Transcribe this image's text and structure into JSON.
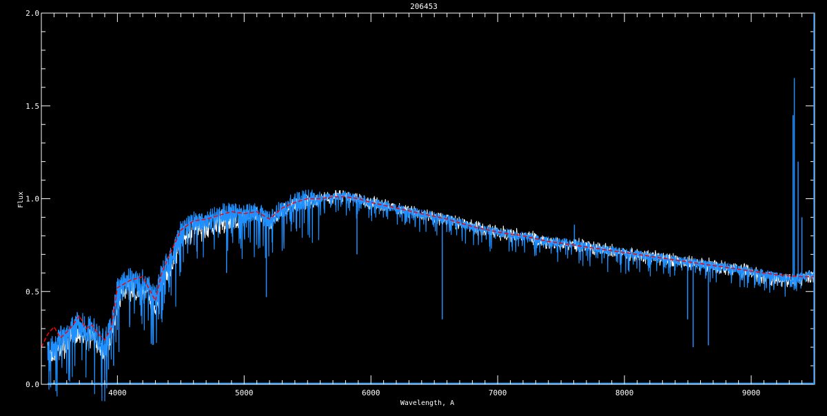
{
  "chart_data": {
    "type": "line",
    "title": "206453",
    "xlabel": "Wavelength, A",
    "ylabel": "Flux",
    "xlim": [
      3400,
      9500
    ],
    "ylim": [
      0.0,
      2.0
    ],
    "x_ticks": [
      4000,
      5000,
      6000,
      7000,
      8000,
      9000
    ],
    "x_tick_labels": [
      "4000",
      "5000",
      "6000",
      "7000",
      "8000",
      "9000"
    ],
    "y_ticks": [
      0.0,
      0.5,
      1.0,
      1.5,
      2.0
    ],
    "y_tick_labels": [
      "0.0",
      "0.5",
      "1.0",
      "1.5",
      "2.0"
    ],
    "grid": false,
    "colors": {
      "observed": "#1e90ff",
      "model": "#ff0000",
      "secondary": "#ffffff",
      "axes": "#ffffff",
      "background": "#000000"
    },
    "series": [
      {
        "id": "observed",
        "x": [
          3450,
          3500,
          3550,
          3600,
          3650,
          3700,
          3750,
          3800,
          3850,
          3900,
          3950,
          4000,
          4050,
          4100,
          4150,
          4200,
          4250,
          4300,
          4350,
          4400,
          4450,
          4500,
          4600,
          4700,
          4800,
          4900,
          5000,
          5100,
          5200,
          5300,
          5400,
          5500,
          5600,
          5700,
          5800,
          5900,
          6000,
          6200,
          6400,
          6600,
          6800,
          7000,
          7200,
          7400,
          7600,
          7800,
          8000,
          8200,
          8400,
          8600,
          8800,
          9000,
          9200,
          9300,
          9400,
          9500
        ],
        "y": [
          0.2,
          0.22,
          0.25,
          0.25,
          0.3,
          0.33,
          0.3,
          0.3,
          0.25,
          0.22,
          0.3,
          0.5,
          0.55,
          0.56,
          0.55,
          0.55,
          0.52,
          0.45,
          0.6,
          0.65,
          0.72,
          0.82,
          0.88,
          0.88,
          0.92,
          0.93,
          0.92,
          0.93,
          0.88,
          0.95,
          0.98,
          1.0,
          1.0,
          1.01,
          1.02,
          1.0,
          0.98,
          0.95,
          0.92,
          0.89,
          0.85,
          0.82,
          0.8,
          0.77,
          0.76,
          0.73,
          0.71,
          0.69,
          0.67,
          0.65,
          0.63,
          0.61,
          0.58,
          0.57,
          0.58,
          0.6
        ]
      },
      {
        "id": "model",
        "x": [
          3400,
          3450,
          3500,
          3550,
          3600,
          3650,
          3700,
          3750,
          3800,
          3850,
          3900,
          3950,
          4000,
          4100,
          4200,
          4300,
          4350,
          4400,
          4500,
          4600,
          4700,
          4800,
          4900,
          5000,
          5100,
          5200,
          5300,
          5400,
          5500,
          5600,
          5700,
          5800,
          5900,
          6000,
          6200,
          6400,
          6600,
          6800,
          7000,
          7200,
          7400,
          7600,
          7800,
          8000,
          8200,
          8400,
          8600,
          8800,
          9000,
          9200,
          9400,
          9500
        ],
        "y": [
          0.2,
          0.27,
          0.31,
          0.25,
          0.28,
          0.32,
          0.37,
          0.3,
          0.32,
          0.27,
          0.24,
          0.3,
          0.52,
          0.56,
          0.58,
          0.45,
          0.6,
          0.68,
          0.83,
          0.88,
          0.89,
          0.91,
          0.93,
          0.92,
          0.93,
          0.89,
          0.95,
          0.98,
          1.0,
          1.0,
          1.01,
          1.01,
          1.0,
          0.98,
          0.95,
          0.92,
          0.89,
          0.85,
          0.82,
          0.8,
          0.77,
          0.75,
          0.73,
          0.71,
          0.69,
          0.67,
          0.65,
          0.63,
          0.61,
          0.59,
          0.58,
          0.58
        ]
      }
    ],
    "lines": [
      {
        "x": 3930,
        "y": 0.08
      },
      {
        "x": 3970,
        "y": 0.1
      },
      {
        "x": 4861,
        "y": 0.6
      },
      {
        "x": 5175,
        "y": 0.47
      },
      {
        "x": 5890,
        "y": 0.7
      },
      {
        "x": 6563,
        "y": 0.35
      },
      {
        "x": 8498,
        "y": 0.35
      },
      {
        "x": 8542,
        "y": 0.2
      },
      {
        "x": 8662,
        "y": 0.21
      },
      {
        "x": 7605,
        "y": 0.86
      },
      {
        "x": 9340,
        "y": 1.65
      },
      {
        "x": 9330,
        "y": 1.45
      },
      {
        "x": 9370,
        "y": 1.2
      },
      {
        "x": 9400,
        "y": 0.9
      }
    ]
  }
}
